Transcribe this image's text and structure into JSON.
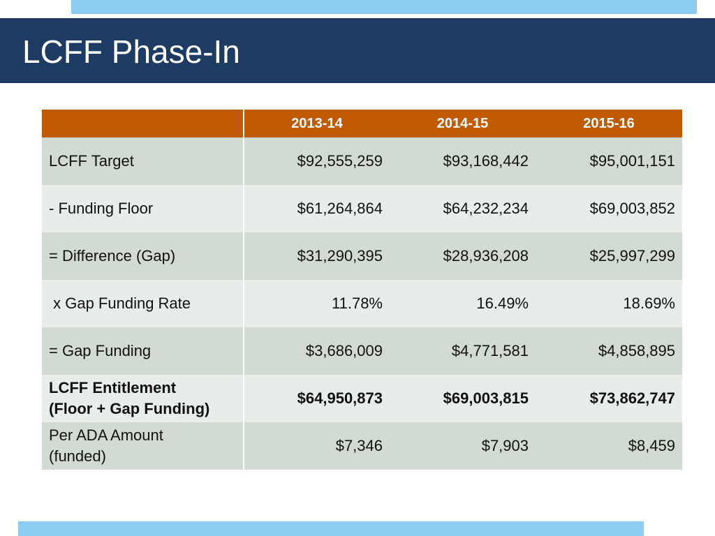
{
  "slide": {
    "title": "LCFF Phase-In"
  },
  "table": {
    "columns": [
      "",
      "2013-14",
      "2014-15",
      "2015-16"
    ],
    "rows": [
      {
        "label": "LCFF Target",
        "values": [
          "$92,555,259",
          "$93,168,442",
          "$95,001,151"
        ]
      },
      {
        "label": "- Funding Floor",
        "values": [
          "$61,264,864",
          "$64,232,234",
          "$69,003,852"
        ]
      },
      {
        "label": "= Difference (Gap)",
        "values": [
          "$31,290,395",
          "$28,936,208",
          "$25,997,299"
        ]
      },
      {
        "label": " x Gap Funding Rate",
        "values": [
          "11.78%",
          "16.49%",
          "18.69%"
        ]
      },
      {
        "label": "= Gap Funding",
        "values": [
          "$3,686,009",
          "$4,771,581",
          "$4,858,895"
        ]
      },
      {
        "label_line1": "LCFF Entitlement",
        "label_line2": "(Floor + Gap Funding)",
        "values": [
          "$64,950,873",
          "$69,003,815",
          "$73,862,747"
        ]
      },
      {
        "label_line1": "Per ADA Amount",
        "label_line2": "(funded)",
        "values": [
          "$7,346",
          "$7,903",
          "$8,459"
        ]
      }
    ]
  },
  "colors": {
    "title_bar": "#1d3b63",
    "accent_strip": "#8ecdf3",
    "header": "#c05a05",
    "row_dark": "#d1dbd2",
    "row_light": "#e8ede9"
  }
}
